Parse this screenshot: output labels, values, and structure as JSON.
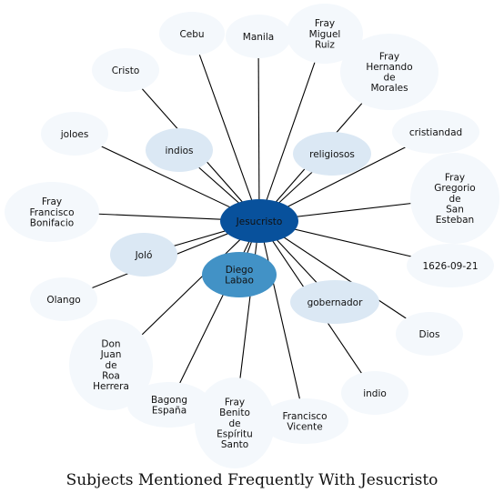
{
  "title": "Subjects Mentioned Frequently With Jesucristo",
  "colors": {
    "center": "#08519c",
    "strong": "#4292c6",
    "medium": "#dbe8f4",
    "light": "#f4f8fc",
    "edge": "#000000",
    "center_text": "#111111"
  },
  "center": {
    "label": "Jesucristo",
    "tier": "center"
  },
  "nodes": [
    {
      "id": "cebu",
      "lines": [
        "Cebu"
      ],
      "tier": "light"
    },
    {
      "id": "manila",
      "lines": [
        "Manila"
      ],
      "tier": "light"
    },
    {
      "id": "fray-miguel-ruiz",
      "lines": [
        "Fray",
        "Miguel",
        "Ruiz"
      ],
      "tier": "light"
    },
    {
      "id": "fray-hernando-de-morales",
      "lines": [
        "Fray",
        "Hernando",
        "de",
        "Morales"
      ],
      "tier": "light"
    },
    {
      "id": "cristo",
      "lines": [
        "Cristo"
      ],
      "tier": "light"
    },
    {
      "id": "indios",
      "lines": [
        "indios"
      ],
      "tier": "medium"
    },
    {
      "id": "religiosos",
      "lines": [
        "religiosos"
      ],
      "tier": "medium"
    },
    {
      "id": "cristiandad",
      "lines": [
        "cristiandad"
      ],
      "tier": "light"
    },
    {
      "id": "joloes",
      "lines": [
        "joloes"
      ],
      "tier": "light"
    },
    {
      "id": "fray-gregorio-de-san-esteban",
      "lines": [
        "Fray",
        "Gregorio",
        "de",
        "San",
        "Esteban"
      ],
      "tier": "light"
    },
    {
      "id": "fray-francisco-bonifacio",
      "lines": [
        "Fray",
        "Francisco",
        "Bonifacio"
      ],
      "tier": "light"
    },
    {
      "id": "jolo",
      "lines": [
        "Joló"
      ],
      "tier": "medium"
    },
    {
      "id": "diego-labao",
      "lines": [
        "Diego",
        "Labao"
      ],
      "tier": "strong"
    },
    {
      "id": "1626-09-21",
      "lines": [
        "1626-09-21"
      ],
      "tier": "light"
    },
    {
      "id": "olango",
      "lines": [
        "Olango"
      ],
      "tier": "light"
    },
    {
      "id": "gobernador",
      "lines": [
        "gobernador"
      ],
      "tier": "medium"
    },
    {
      "id": "dios",
      "lines": [
        "Dios"
      ],
      "tier": "light"
    },
    {
      "id": "don-juan-de-roa-herrera",
      "lines": [
        "Don",
        "Juan",
        "de",
        "Roa",
        "Herrera"
      ],
      "tier": "light"
    },
    {
      "id": "indio",
      "lines": [
        "indio"
      ],
      "tier": "light"
    },
    {
      "id": "bagong-espana",
      "lines": [
        "Bagong",
        "España"
      ],
      "tier": "light"
    },
    {
      "id": "fray-benito-de-espiritu-santo",
      "lines": [
        "Fray",
        "Benito",
        "de",
        "Espíritu",
        "Santo"
      ],
      "tier": "light"
    },
    {
      "id": "francisco-vicente",
      "lines": [
        "Francisco",
        "Vicente"
      ],
      "tier": "light"
    }
  ]
}
